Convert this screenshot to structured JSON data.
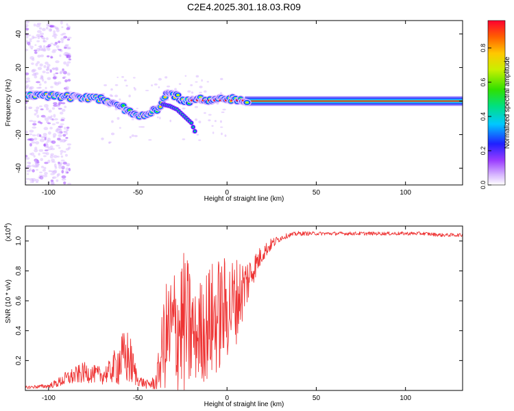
{
  "title": "C2E4.2025.301.18.03.R09",
  "colors": {
    "snr_line": "#ee3333",
    "axes": "#000000",
    "background": "#ffffff"
  },
  "chart_data": [
    {
      "type": "heatmap",
      "name": "spectrogram",
      "xlabel": "Height of straight line (km)",
      "ylabel": "Frequency (Hz)",
      "xlim": [
        -113,
        132
      ],
      "ylim": [
        -50,
        48
      ],
      "xticks": [
        -100,
        -50,
        0,
        50,
        100
      ],
      "yticks": [
        -40,
        -20,
        0,
        20,
        40
      ],
      "ytick_labels": [
        "-40",
        "-20",
        "0",
        "20",
        "40"
      ],
      "colorbar": {
        "label": "Normalized spectral amplitude",
        "range": [
          0,
          0.96
        ],
        "ticks": [
          0.0,
          0.2,
          0.4,
          0.6,
          0.8
        ],
        "tick_labels": [
          "0.0",
          "0.2",
          "0.4",
          "0.6",
          "0.8"
        ]
      },
      "ridge": {
        "height_km": [
          -113,
          -100,
          -90,
          -80,
          -70,
          -60,
          -55,
          -50,
          -47,
          -44,
          -41,
          -38,
          -35,
          -33,
          -30,
          -27,
          -25,
          -22,
          -20,
          -15,
          -10,
          -5,
          0,
          5,
          10,
          20,
          40,
          60,
          80,
          100,
          132
        ],
        "frequency_hz": [
          3,
          3,
          2.5,
          2,
          1,
          -3,
          -6,
          -8,
          -9,
          -7,
          -6,
          -5,
          2,
          5,
          4,
          2,
          1,
          0,
          0,
          1,
          0.5,
          2,
          1.5,
          1,
          0.5,
          0,
          0,
          0,
          0,
          0,
          0
        ]
      },
      "side_branch": {
        "height_km": [
          -36,
          -32,
          -28,
          -25,
          -23,
          -20,
          -18
        ],
        "frequency_hz": [
          -2,
          -3,
          -5,
          -8,
          -10,
          -13,
          -18
        ]
      }
    },
    {
      "type": "line",
      "name": "snr",
      "xlabel": "Height of straight line (km)",
      "ylabel": "SNR (10 * v/v)",
      "multiplier_label": "(x10",
      "multiplier_exponent": "4",
      "multiplier_close": ")",
      "xlim": [
        -113,
        132
      ],
      "ylim": [
        0,
        1.1
      ],
      "xticks": [
        -100,
        -50,
        0,
        50,
        100
      ],
      "yticks": [
        0.2,
        0.4,
        0.6,
        0.8,
        1.0
      ],
      "ytick_labels": [
        "0.2",
        "0.4",
        "0.6",
        "0.8",
        "1.0"
      ],
      "series": [
        {
          "name": "SNR",
          "x": [
            -113,
            -100,
            -95,
            -90,
            -85,
            -80,
            -75,
            -70,
            -65,
            -60,
            -55,
            -50,
            -45,
            -40,
            -38,
            -35,
            -30,
            -25,
            -20,
            -18,
            -15,
            -10,
            -5,
            0,
            5,
            10,
            15,
            20,
            25,
            30,
            35,
            40,
            50,
            60,
            70,
            80,
            90,
            100,
            110,
            120,
            132
          ],
          "y": [
            0.02,
            0.03,
            0.05,
            0.08,
            0.1,
            0.12,
            0.11,
            0.1,
            0.13,
            0.2,
            0.22,
            0.07,
            0.04,
            0.05,
            0.15,
            0.35,
            0.4,
            0.45,
            0.4,
            0.35,
            0.4,
            0.45,
            0.5,
            0.55,
            0.6,
            0.7,
            0.82,
            0.92,
            0.98,
            1.02,
            1.04,
            1.05,
            1.05,
            1.05,
            1.05,
            1.05,
            1.05,
            1.05,
            1.05,
            1.04,
            1.04
          ],
          "noise_amplitude": [
            0.01,
            0.015,
            0.03,
            0.05,
            0.06,
            0.07,
            0.06,
            0.06,
            0.08,
            0.18,
            0.2,
            0.04,
            0.03,
            0.05,
            0.15,
            0.35,
            0.45,
            0.5,
            0.45,
            0.3,
            0.35,
            0.4,
            0.4,
            0.35,
            0.3,
            0.2,
            0.1,
            0.06,
            0.04,
            0.02,
            0.015,
            0.015,
            0.012,
            0.012,
            0.012,
            0.012,
            0.012,
            0.012,
            0.012,
            0.012,
            0.012
          ]
        }
      ]
    }
  ]
}
